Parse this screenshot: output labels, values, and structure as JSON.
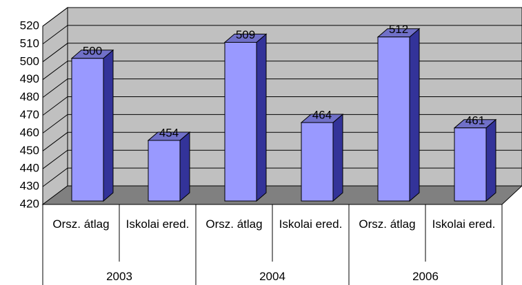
{
  "chart_data": {
    "type": "bar3d",
    "categories": [
      "Orsz. átlag",
      "Iskolai ered.",
      "Orsz. átlag",
      "Iskolai ered.",
      "Orsz. átlag",
      "Iskolai ered."
    ],
    "group_labels": [
      "2003",
      "2004",
      "2006"
    ],
    "values": [
      500,
      454,
      509,
      464,
      512,
      461
    ],
    "color": "#9999ff",
    "ylim": [
      420,
      520
    ],
    "yticks": [
      420,
      430,
      440,
      450,
      460,
      470,
      480,
      490,
      500,
      510,
      520
    ],
    "grid": true
  }
}
